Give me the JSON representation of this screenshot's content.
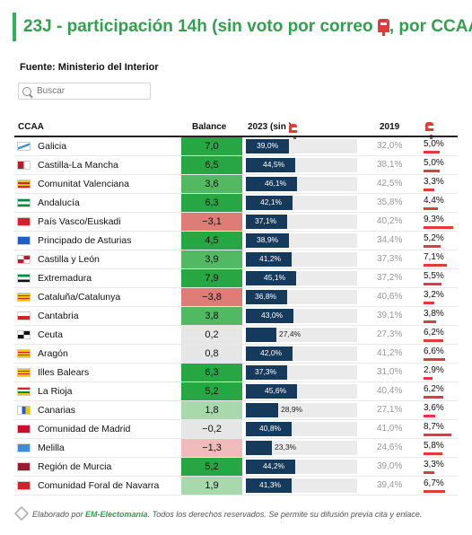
{
  "header": {
    "title_before": "23J - participación 14h (sin voto por correo ",
    "title_after": ", por CCAA)",
    "source": "Fuente: Ministerio del Interior"
  },
  "search": {
    "placeholder": "Buscar"
  },
  "columns": {
    "ccaa": "CCAA",
    "balance": "Balance",
    "y2023": "2023 (sin",
    "y2019": "2019"
  },
  "colors": {
    "green_strong": "#27a644",
    "green_mid": "#52b963",
    "green_light": "#a8d9ad",
    "neutral": "#e6e6e6",
    "red_strong": "#de7c78",
    "red_light": "#f0bcbb",
    "bar": "#163a5b",
    "mail": "#e23b3b",
    "accent": "#2fa24f"
  },
  "rows": [
    {
      "name": "Galicia",
      "balance": "7,0",
      "v2023": "39,0%",
      "v2019": "32,0%",
      "mail": "5,0%",
      "flag": "galicia-flag-icon"
    },
    {
      "name": "Castilla-La Mancha",
      "balance": "6,5",
      "v2023": "44,5%",
      "v2019": "38,1%",
      "mail": "5,0%",
      "flag": "castilla-la-mancha-flag-icon"
    },
    {
      "name": "Comunitat Valenciana",
      "balance": "3,6",
      "v2023": "46,1%",
      "v2019": "42,5%",
      "mail": "3,3%",
      "flag": "valencia-flag-icon"
    },
    {
      "name": "Andalucía",
      "balance": "6,3",
      "v2023": "42,1%",
      "v2019": "35,8%",
      "mail": "4,4%",
      "flag": "andalucia-flag-icon"
    },
    {
      "name": "País Vasco/Euskadi",
      "balance": "−3,1",
      "v2023": "37,1%",
      "v2019": "40,2%",
      "mail": "9,3%",
      "flag": "euskadi-flag-icon"
    },
    {
      "name": "Principado de Asturias",
      "balance": "4,5",
      "v2023": "38,9%",
      "v2019": "34,4%",
      "mail": "5,2%",
      "flag": "asturias-flag-icon"
    },
    {
      "name": "Castilla y León",
      "balance": "3,9",
      "v2023": "41,2%",
      "v2019": "37,3%",
      "mail": "7,1%",
      "flag": "castilla-y-leon-flag-icon"
    },
    {
      "name": "Extremadura",
      "balance": "7,9",
      "v2023": "45,1%",
      "v2019": "37,2%",
      "mail": "5,5%",
      "flag": "extremadura-flag-icon"
    },
    {
      "name": "Cataluña/Catalunya",
      "balance": "−3,8",
      "v2023": "36,8%",
      "v2019": "40,6%",
      "mail": "3,2%",
      "flag": "cataluna-flag-icon"
    },
    {
      "name": "Cantabria",
      "balance": "3,8",
      "v2023": "43,0%",
      "v2019": "39,1%",
      "mail": "3,8%",
      "flag": "cantabria-flag-icon"
    },
    {
      "name": "Ceuta",
      "balance": "0,2",
      "v2023": "27,4%",
      "v2019": "27,3%",
      "mail": "6,2%",
      "flag": "ceuta-flag-icon"
    },
    {
      "name": "Aragón",
      "balance": "0,8",
      "v2023": "42,0%",
      "v2019": "41,2%",
      "mail": "6,6%",
      "flag": "aragon-flag-icon"
    },
    {
      "name": "Illes Balears",
      "balance": "6,3",
      "v2023": "37,3%",
      "v2019": "31,0%",
      "mail": "2,9%",
      "flag": "baleares-flag-icon"
    },
    {
      "name": "La Rioja",
      "balance": "5,2",
      "v2023": "45,6%",
      "v2019": "40,4%",
      "mail": "6,2%",
      "flag": "la-rioja-flag-icon"
    },
    {
      "name": "Canarias",
      "balance": "1,8",
      "v2023": "28,9%",
      "v2019": "27,1%",
      "mail": "3,6%",
      "flag": "canarias-flag-icon"
    },
    {
      "name": "Comunidad de Madrid",
      "balance": "−0,2",
      "v2023": "40,8%",
      "v2019": "41,0%",
      "mail": "8,7%",
      "flag": "madrid-flag-icon"
    },
    {
      "name": "Melilla",
      "balance": "−1,3",
      "v2023": "23,3%",
      "v2019": "24,6%",
      "mail": "5,8%",
      "flag": "melilla-flag-icon"
    },
    {
      "name": "Región de Murcia",
      "balance": "5,2",
      "v2023": "44,2%",
      "v2019": "39,0%",
      "mail": "3,3%",
      "flag": "murcia-flag-icon"
    },
    {
      "name": "Comunidad Foral de Navarra",
      "balance": "1,9",
      "v2023": "41,3%",
      "v2019": "39,4%",
      "mail": "6,7%",
      "flag": "navarra-flag-icon"
    }
  ],
  "footer": {
    "prefix": "Elaborado por ",
    "brand": "EM-Electomanía",
    "suffix": ". Todos los derechos reservados. Se permite su difusión previa cita y enlace."
  }
}
